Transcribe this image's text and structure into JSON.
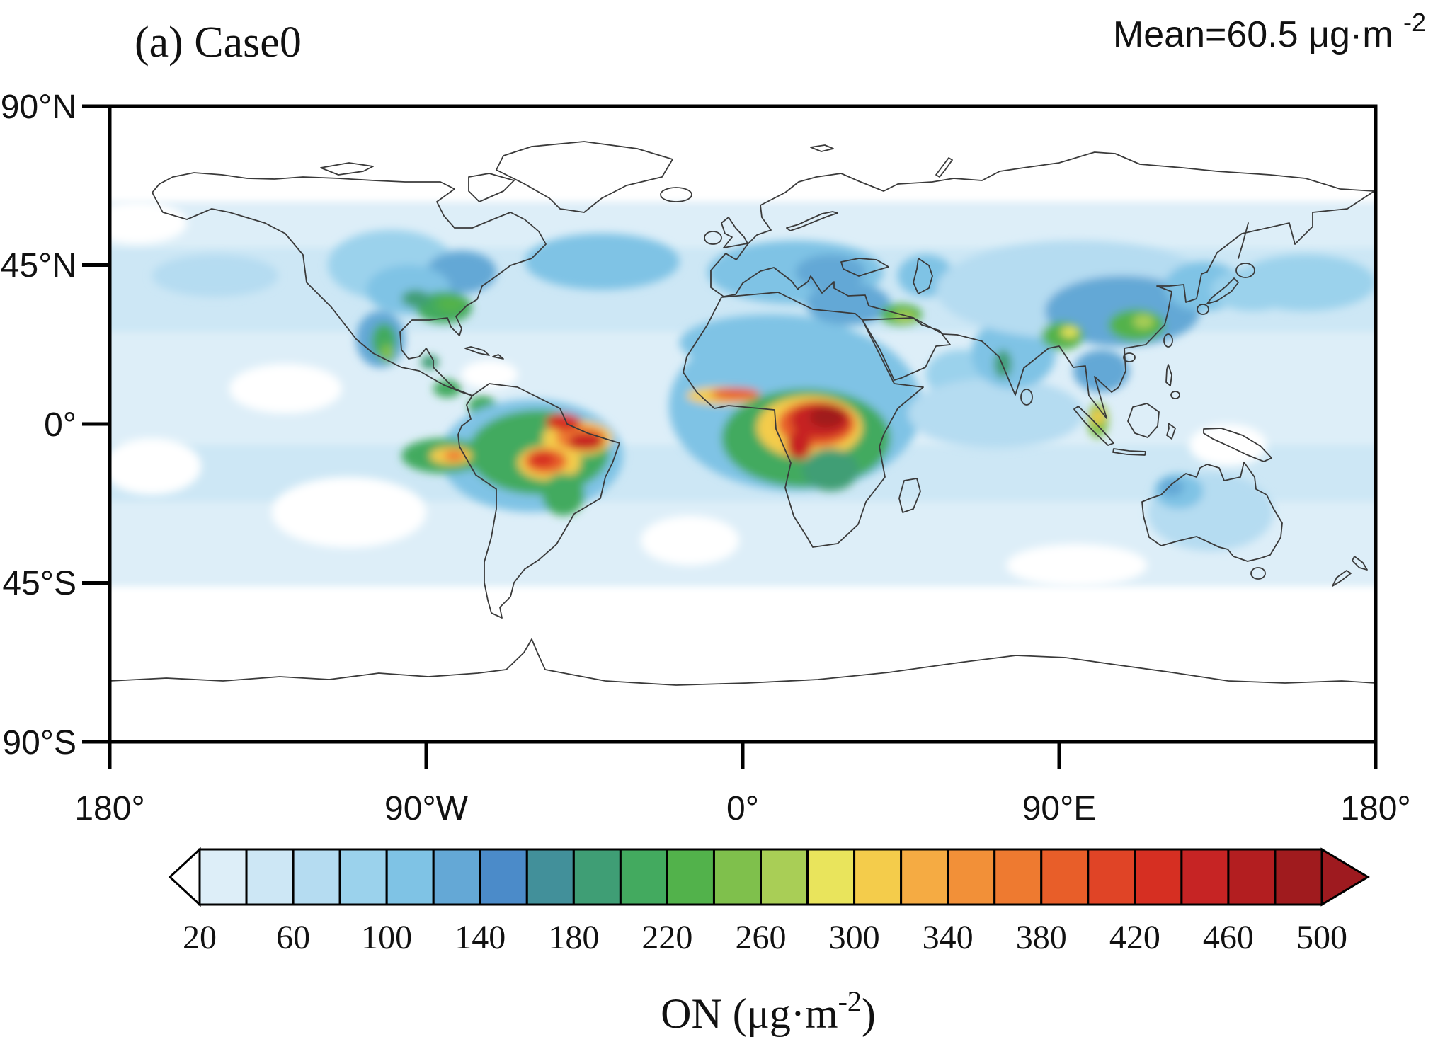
{
  "header": {
    "panel_label": "(a) Case0",
    "mean_prefix": "Mean=60.5 μg·m",
    "mean_sup": "-2"
  },
  "axes": {
    "lat_labels": [
      "90°N",
      "45°N",
      "0°",
      "45°S",
      "90°S"
    ],
    "lon_labels": [
      "180°",
      "90°W",
      "0°",
      "90°E",
      "180°"
    ]
  },
  "colorbar": {
    "title_prefix": "ON (μg·m",
    "title_sup": "-2",
    "title_suffix": ")",
    "tick_labels": [
      "20",
      "60",
      "100",
      "140",
      "180",
      "220",
      "260",
      "300",
      "340",
      "380",
      "420",
      "460",
      "500"
    ],
    "under_color": "#ffffff",
    "over_color": "#9e1a1f",
    "colors": [
      "#ddeef8",
      "#cde7f5",
      "#b5dcf1",
      "#9bd2ec",
      "#7fc3e5",
      "#64a8d6",
      "#4b8bc9",
      "#42909a",
      "#3f9e75",
      "#43aa5f",
      "#52b24b",
      "#7fc04c",
      "#a9ce56",
      "#e9e45c",
      "#f4cc4b",
      "#f5ab43",
      "#f29038",
      "#ee7a30",
      "#e85e29",
      "#e04426",
      "#d62f22",
      "#c62424",
      "#b31e20",
      "#a01b1e"
    ]
  },
  "chart_data": {
    "type": "heatmap",
    "title": "(a) Case0",
    "variable": "ON",
    "units": "μg·m-2",
    "mean": 60.5,
    "projection": "equirectangular",
    "lon_range": [
      -180,
      180
    ],
    "lat_range": [
      -90,
      90
    ],
    "colorbar_min": 20,
    "colorbar_step": 20,
    "colorbar_max": 500,
    "bands": [
      {
        "name": "nh-subpolar-band",
        "latmin": 50,
        "latmax": 63,
        "value": 25
      },
      {
        "name": "nh-midlat-band",
        "latmin": 26,
        "latmax": 50,
        "value": 50
      },
      {
        "name": "tropics-band",
        "latmin": -6,
        "latmax": 26,
        "value": 35
      },
      {
        "name": "s-tropics-band",
        "latmin": -22,
        "latmax": -6,
        "value": 45
      },
      {
        "name": "sh-midlat-band",
        "latmin": -46,
        "latmax": -22,
        "value": 28
      },
      {
        "name": "arctic-clear",
        "latmin": 63,
        "latmax": 90,
        "value": 0
      },
      {
        "name": "antarctic-clear",
        "latmin": -90,
        "latmax": -46,
        "value": 0
      }
    ],
    "regions": [
      {
        "name": "bering-low",
        "lon": -172,
        "lat": 57,
        "rlon": 14,
        "rlat": 6,
        "value": 5
      },
      {
        "name": "trop-e-pacific-low",
        "lon": -130,
        "lat": 10,
        "rlon": 16,
        "rlat": 7,
        "value": 8
      },
      {
        "name": "se-pacific-low",
        "lon": -112,
        "lat": -25,
        "rlon": 22,
        "rlat": 10,
        "value": 5
      },
      {
        "name": "caribbean-low",
        "lon": -72,
        "lat": 14,
        "rlon": 8,
        "rlat": 4,
        "value": 12
      },
      {
        "name": "s-atlantic-low",
        "lon": -15,
        "lat": -33,
        "rlon": 14,
        "rlat": 7,
        "value": 8
      },
      {
        "name": "s-indian-low",
        "lon": 95,
        "lat": -40,
        "rlon": 20,
        "rlat": 6,
        "value": 8
      },
      {
        "name": "banda-sea-low",
        "lon": 138,
        "lat": -6,
        "rlon": 11,
        "rlat": 6,
        "value": 10
      },
      {
        "name": "c-pacific-low",
        "lon": -168,
        "lat": -12,
        "rlon": 14,
        "rlat": 8,
        "value": 15
      },
      {
        "name": "n-pacific-west-band",
        "lon": 160,
        "lat": 40,
        "rlon": 20,
        "rlat": 8,
        "value": 85
      },
      {
        "name": "n-pacific-east-band",
        "lon": -150,
        "lat": 42,
        "rlon": 18,
        "rlat": 6,
        "value": 60
      },
      {
        "name": "n-atlantic-band",
        "lon": -40,
        "lat": 46,
        "rlon": 22,
        "rlat": 8,
        "value": 100
      },
      {
        "name": "north-america-interior",
        "lon": -100,
        "lat": 45,
        "rlon": 18,
        "rlat": 10,
        "value": 85
      },
      {
        "name": "great-lakes-ne",
        "lon": -80,
        "lat": 43,
        "rlon": 10,
        "rlat": 6,
        "value": 125
      },
      {
        "name": "us-plains-blue",
        "lon": -95,
        "lat": 38,
        "rlon": 12,
        "rlat": 7,
        "value": 105
      },
      {
        "name": "se-us-green",
        "lon": -85,
        "lat": 33,
        "rlon": 8,
        "rlat": 4.5,
        "value": 215
      },
      {
        "name": "se-us-core",
        "lon": -83,
        "lat": 34,
        "rlon": 4,
        "rlat": 2.5,
        "value": 235
      },
      {
        "name": "ozark-green",
        "lon": -93,
        "lat": 35.5,
        "rlon": 4,
        "rlat": 2.5,
        "value": 195
      },
      {
        "name": "mexico-blue",
        "lon": -103,
        "lat": 24,
        "rlon": 7,
        "rlat": 8,
        "value": 135
      },
      {
        "name": "mexico-green",
        "lon": -102,
        "lat": 23.5,
        "rlon": 3.5,
        "rlat": 5,
        "value": 215
      },
      {
        "name": "mexico-core",
        "lon": -101,
        "lat": 20,
        "rlon": 2,
        "rlat": 2.5,
        "value": 245
      },
      {
        "name": "yucatan-green",
        "lon": -89,
        "lat": 17.5,
        "rlon": 2.5,
        "rlat": 2,
        "value": 185
      },
      {
        "name": "cam-green",
        "lon": -84,
        "lat": 10,
        "rlon": 4,
        "rlat": 2.5,
        "value": 200
      },
      {
        "name": "colombia-green",
        "lon": -74,
        "lat": 5,
        "rlon": 4,
        "rlat": 3,
        "value": 200
      },
      {
        "name": "amazon-bg-blue",
        "lon": -60,
        "lat": -9,
        "rlon": 26,
        "rlat": 16,
        "value": 115
      },
      {
        "name": "amazon-green",
        "lon": -58,
        "lat": -8,
        "rlon": 20,
        "rlat": 12,
        "value": 215
      },
      {
        "name": "ne-brazil-yellow",
        "lon": -47,
        "lat": -4,
        "rlon": 10,
        "rlat": 5,
        "value": 300
      },
      {
        "name": "ne-brazil-orange",
        "lon": -46,
        "lat": -4,
        "rlon": 7,
        "rlat": 3.5,
        "value": 375
      },
      {
        "name": "ne-coast-red",
        "lon": -44.5,
        "lat": -5,
        "rlon": 5,
        "rlat": 2.5,
        "value": 440
      },
      {
        "name": "guyana-red-arc",
        "lon": -51,
        "lat": 0.5,
        "rlon": 5,
        "rlat": 2.5,
        "value": 420
      },
      {
        "name": "c-brazil-yellow",
        "lon": -55,
        "lat": -11,
        "rlon": 9,
        "rlat": 5,
        "value": 305
      },
      {
        "name": "c-brazil-orange",
        "lon": -56,
        "lat": -10.5,
        "rlon": 6,
        "rlat": 3.5,
        "value": 380
      },
      {
        "name": "c-brazil-red",
        "lon": -57,
        "lat": -10,
        "rlon": 3.5,
        "rlat": 2,
        "value": 435
      },
      {
        "name": "s-brazil-green",
        "lon": -51,
        "lat": -20,
        "rlon": 6,
        "rlat": 6,
        "value": 205
      },
      {
        "name": "peru-plume-green",
        "lon": -85,
        "lat": -9,
        "rlon": 12,
        "rlat": 5,
        "value": 210
      },
      {
        "name": "peru-plume-yellow",
        "lon": -83,
        "lat": -9,
        "rlon": 6,
        "rlat": 2.5,
        "value": 300
      },
      {
        "name": "peru-plume-orange",
        "lon": -82,
        "lat": -9,
        "rlon": 3,
        "rlat": 1.5,
        "value": 365
      },
      {
        "name": "africa-bg-blue",
        "lon": 15,
        "lat": 5,
        "rlon": 36,
        "rlat": 24,
        "value": 115
      },
      {
        "name": "sahara-blue",
        "lon": 8,
        "lat": 23,
        "rlon": 26,
        "rlat": 8,
        "value": 100
      },
      {
        "name": "africa-green",
        "lon": 18,
        "lat": -4,
        "rlon": 24,
        "rlat": 14,
        "value": 215
      },
      {
        "name": "guinea-yellow",
        "lon": -6,
        "lat": 8,
        "rlon": 10,
        "rlat": 2.5,
        "value": 300
      },
      {
        "name": "guinea-orange",
        "lon": -2,
        "lat": 8.5,
        "rlon": 7,
        "rlat": 1.8,
        "value": 380
      },
      {
        "name": "congo-yellow",
        "lon": 19,
        "lat": -1,
        "rlon": 15,
        "rlat": 9,
        "value": 305
      },
      {
        "name": "congo-orange",
        "lon": 21,
        "lat": 0,
        "rlon": 11,
        "rlat": 6.5,
        "value": 385
      },
      {
        "name": "congo-red",
        "lon": 22,
        "lat": 1,
        "rlon": 8.5,
        "rlat": 5,
        "value": 445
      },
      {
        "name": "congo-darkred",
        "lon": 24,
        "lat": 2,
        "rlon": 5,
        "rlat": 3,
        "value": 485
      },
      {
        "name": "angola-red",
        "lon": 16,
        "lat": -6,
        "rlon": 3.5,
        "rlat": 4,
        "value": 440
      },
      {
        "name": "s-africa-green",
        "lon": 25,
        "lat": -13,
        "rlon": 8,
        "rlat": 6,
        "value": 185
      },
      {
        "name": "europe-blue",
        "lon": 15,
        "lat": 43,
        "rlon": 25,
        "rlat": 9,
        "value": 105
      },
      {
        "name": "balkans-blue",
        "lon": 25,
        "lat": 43,
        "rlon": 10,
        "rlat": 5,
        "value": 130
      },
      {
        "name": "e-med-blue",
        "lon": 30,
        "lat": 34,
        "rlon": 12,
        "rlat": 6,
        "value": 125
      },
      {
        "name": "iraq-green",
        "lon": 45,
        "lat": 31,
        "rlon": 6,
        "rlat": 3,
        "value": 230
      },
      {
        "name": "iraq-core",
        "lon": 46,
        "lat": 30.5,
        "rlon": 3,
        "rlat": 1.5,
        "value": 270
      },
      {
        "name": "caspian-blue",
        "lon": 52,
        "lat": 42,
        "rlon": 8,
        "rlat": 6,
        "value": 110
      },
      {
        "name": "arabian-sea-blue",
        "lon": 62,
        "lat": 14,
        "rlon": 10,
        "rlat": 7,
        "value": 90
      },
      {
        "name": "n-indian-ocean",
        "lon": 72,
        "lat": 3,
        "rlon": 25,
        "rlat": 10,
        "value": 60
      },
      {
        "name": "india-blue",
        "lon": 77,
        "lat": 20,
        "rlon": 12,
        "rlat": 10,
        "value": 115
      },
      {
        "name": "india-w-green",
        "lon": 74,
        "lat": 17,
        "rlon": 2.5,
        "rlat": 4,
        "value": 180
      },
      {
        "name": "central-asia-pale",
        "lon": 95,
        "lat": 38,
        "rlon": 40,
        "rlat": 14,
        "value": 65
      },
      {
        "name": "china-blue",
        "lon": 108,
        "lat": 32,
        "rlon": 22,
        "rlat": 10,
        "value": 135
      },
      {
        "name": "ne-india-green",
        "lon": 91,
        "lat": 25,
        "rlon": 6,
        "rlat": 4,
        "value": 230
      },
      {
        "name": "ne-india-core",
        "lon": 93,
        "lat": 26,
        "rlon": 2.5,
        "rlat": 1.5,
        "value": 285
      },
      {
        "name": "s-china-green",
        "lon": 112,
        "lat": 28,
        "rlon": 8,
        "rlat": 4.5,
        "value": 225
      },
      {
        "name": "s-china-core",
        "lon": 114,
        "lat": 29,
        "rlon": 3,
        "rlat": 2,
        "value": 265
      },
      {
        "name": "indochina-blue",
        "lon": 102,
        "lat": 15,
        "rlon": 8,
        "rlat": 6,
        "value": 125
      },
      {
        "name": "sumatra-green",
        "lon": 101,
        "lat": 1,
        "rlon": 3,
        "rlat": 5,
        "value": 250
      },
      {
        "name": "sumatra-core",
        "lon": 101,
        "lat": 2,
        "rlon": 1.8,
        "rlat": 2.2,
        "value": 305
      },
      {
        "name": "korea-japan-blue",
        "lon": 131,
        "lat": 39,
        "rlon": 11,
        "rlat": 7,
        "value": 115
      },
      {
        "name": "japan-east-blue",
        "lon": 145,
        "lat": 38,
        "rlon": 12,
        "rlat": 6,
        "value": 90
      },
      {
        "name": "australia-blue",
        "lon": 133,
        "lat": -25,
        "rlon": 18,
        "rlat": 11,
        "value": 70
      },
      {
        "name": "nw-australia-blue",
        "lon": 124,
        "lat": -19,
        "rlon": 7,
        "rlat": 5,
        "value": 110
      },
      {
        "name": "nw-australia-core",
        "lon": 122,
        "lat": -18,
        "rlon": 3.5,
        "rlat": 2.5,
        "value": 135
      }
    ]
  }
}
